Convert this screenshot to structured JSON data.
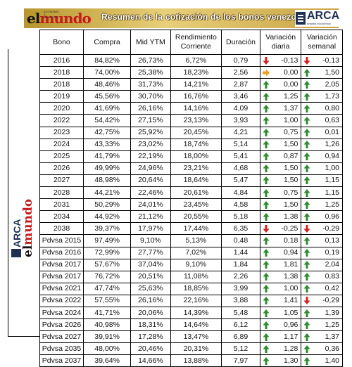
{
  "banner": {
    "title": "Resumen de la cotización de los bonos venezolanos"
  },
  "logos": {
    "elmundo_el": "el",
    "elmundo_mundo": "mundo",
    "elmundo_tag": "ECONOMÍA & NEGOCIOS",
    "arca_name": "ARCA",
    "arca_tag": "análisis económico"
  },
  "colors": {
    "up": "#2e8b2e",
    "down": "#d62020",
    "flat": "#f0a020",
    "banner": "#c9a445"
  },
  "table": {
    "headers": [
      "Bono",
      "Compra",
      "Mid YTM",
      "Rendimiento Corriente",
      "Duración",
      "Variación diaria",
      "Variación semanal"
    ],
    "rows": [
      {
        "bono": "2016",
        "compra": "84,82%",
        "ytm": "26,73%",
        "rend": "6,72%",
        "dur": "0,79",
        "vd_dir": "down",
        "vd": "-0,13",
        "vs_dir": "down",
        "vs": "-0,13"
      },
      {
        "bono": "2018",
        "compra": "74,00%",
        "ytm": "25,38%",
        "rend": "18,23%",
        "dur": "2,56",
        "vd_dir": "flat",
        "vd": "0,00",
        "vs_dir": "up",
        "vs": "1,50"
      },
      {
        "bono": "2018",
        "compra": "48,46%",
        "ytm": "31,73%",
        "rend": "14,21%",
        "dur": "2,87",
        "vd_dir": "up",
        "vd": "0,00",
        "vs_dir": "up",
        "vs": "2,05"
      },
      {
        "bono": "2019",
        "compra": "45,56%",
        "ytm": "30,70%",
        "rend": "16,76%",
        "dur": "3,46",
        "vd_dir": "up",
        "vd": "1,25",
        "vs_dir": "up",
        "vs": "1,73"
      },
      {
        "bono": "2020",
        "compra": "41,69%",
        "ytm": "26,16%",
        "rend": "14,16%",
        "dur": "4,09",
        "vd_dir": "up",
        "vd": "1,37",
        "vs_dir": "up",
        "vs": "0,80"
      },
      {
        "bono": "2022",
        "compra": "54,42%",
        "ytm": "27,15%",
        "rend": "23,13%",
        "dur": "3,93",
        "vd_dir": "up",
        "vd": "1,00",
        "vs_dir": "up",
        "vs": "0,63"
      },
      {
        "bono": "2023",
        "compra": "42,75%",
        "ytm": "25,92%",
        "rend": "20,45%",
        "dur": "4,21",
        "vd_dir": "up",
        "vd": "0,75",
        "vs_dir": "up",
        "vs": "0,01"
      },
      {
        "bono": "2024",
        "compra": "43,33%",
        "ytm": "23,02%",
        "rend": "18,74%",
        "dur": "5,14",
        "vd_dir": "up",
        "vd": "1,50",
        "vs_dir": "up",
        "vs": "1,26"
      },
      {
        "bono": "2025",
        "compra": "41,79%",
        "ytm": "22,19%",
        "rend": "18,00%",
        "dur": "5,41",
        "vd_dir": "up",
        "vd": "0,87",
        "vs_dir": "up",
        "vs": "0,94"
      },
      {
        "bono": "2026",
        "compra": "49,99%",
        "ytm": "24,96%",
        "rend": "23,21%",
        "dur": "4,68",
        "vd_dir": "up",
        "vd": "1,50",
        "vs_dir": "up",
        "vs": "1,00"
      },
      {
        "bono": "2027",
        "compra": "48,98%",
        "ytm": "20,64%",
        "rend": "18,64%",
        "dur": "5,47",
        "vd_dir": "up",
        "vd": "1,50",
        "vs_dir": "up",
        "vs": "1,15"
      },
      {
        "bono": "2028",
        "compra": "44,21%",
        "ytm": "22,46%",
        "rend": "20,61%",
        "dur": "4,84",
        "vd_dir": "up",
        "vd": "0,75",
        "vs_dir": "up",
        "vs": "1,15"
      },
      {
        "bono": "2031",
        "compra": "50,29%",
        "ytm": "24,01%",
        "rend": "23,45%",
        "dur": "4,58",
        "vd_dir": "up",
        "vd": "1,50",
        "vs_dir": "up",
        "vs": "1,25"
      },
      {
        "bono": "2034",
        "compra": "44,92%",
        "ytm": "21,12%",
        "rend": "20,55%",
        "dur": "5,18",
        "vd_dir": "up",
        "vd": "1,38",
        "vs_dir": "up",
        "vs": "0,96"
      },
      {
        "bono": "2038",
        "compra": "39,37%",
        "ytm": "17,97%",
        "rend": "17,44%",
        "dur": "6,35",
        "vd_dir": "down",
        "vd": "-0,25",
        "vs_dir": "down",
        "vs": "-0,29"
      },
      {
        "bono": "Pdvsa 2015",
        "compra": "97,49%",
        "ytm": "9,10%",
        "rend": "5,13%",
        "dur": "0,48",
        "vd_dir": "up",
        "vd": "0,18",
        "vs_dir": "up",
        "vs": "0,13"
      },
      {
        "bono": "Pdvsa 2016",
        "compra": "72,99%",
        "ytm": "27,77%",
        "rend": "7,02%",
        "dur": "1,44",
        "vd_dir": "up",
        "vd": "0,94",
        "vs_dir": "up",
        "vs": "0,19"
      },
      {
        "bono": "Pdvsa 2017",
        "compra": "57,67%",
        "ytm": "37,04%",
        "rend": "9,10%",
        "dur": "1,84",
        "vd_dir": "up",
        "vd": "1,81",
        "vs_dir": "up",
        "vs": "2,04"
      },
      {
        "bono": "Pdvsa 2017",
        "compra": "76,72%",
        "ytm": "20,51%",
        "rend": "11,08%",
        "dur": "2,26",
        "vd_dir": "up",
        "vd": "1,38",
        "vs_dir": "up",
        "vs": "0,83"
      },
      {
        "bono": "Pdvsa 2021",
        "compra": "47,74%",
        "ytm": "25,63%",
        "rend": "18,85%",
        "dur": "3,99",
        "vd_dir": "up",
        "vd": "1,00",
        "vs_dir": "up",
        "vs": "0,42"
      },
      {
        "bono": "Pdvsa 2022",
        "compra": "57,55%",
        "ytm": "26,16%",
        "rend": "22,16%",
        "dur": "3,88",
        "vd_dir": "up",
        "vd": "1,41",
        "vs_dir": "down",
        "vs": "-0,29"
      },
      {
        "bono": "Pdvsa 2024",
        "compra": "41,71%",
        "ytm": "20,06%",
        "rend": "14,39%",
        "dur": "5,48",
        "vd_dir": "up",
        "vd": "1,05",
        "vs_dir": "up",
        "vs": "1,39"
      },
      {
        "bono": "Pdvsa 2026",
        "compra": "40,98%",
        "ytm": "18,31%",
        "rend": "14,64%",
        "dur": "6,12",
        "vd_dir": "up",
        "vd": "0,96",
        "vs_dir": "up",
        "vs": "1,25"
      },
      {
        "bono": "Pdvsa 2027",
        "compra": "39,91%",
        "ytm": "17,28%",
        "rend": "13,47%",
        "dur": "6,89",
        "vd_dir": "up",
        "vd": "1,17",
        "vs_dir": "up",
        "vs": "1,37"
      },
      {
        "bono": "Pdvsa 2035",
        "compra": "48,00%",
        "ytm": "20,46%",
        "rend": "20,31%",
        "dur": "5,12",
        "vd_dir": "up",
        "vd": "1,28",
        "vs_dir": "up",
        "vs": "0,36"
      },
      {
        "bono": "Pdvsa 2037",
        "compra": "39,64%",
        "ytm": "14,66%",
        "rend": "13,88%",
        "dur": "7,97",
        "vd_dir": "up",
        "vd": "1,30",
        "vs_dir": "up",
        "vs": "1,40"
      }
    ]
  }
}
